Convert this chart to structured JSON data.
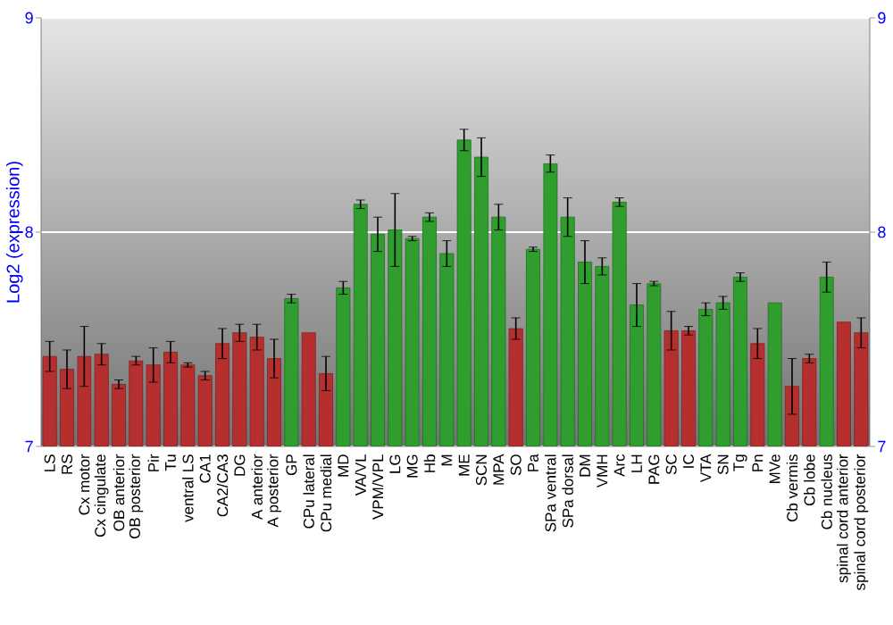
{
  "chart_data": {
    "type": "bar",
    "ylabel": "Log2 (expression)",
    "categories": [
      "LS",
      "RS",
      "Cx motor",
      "Cx cingulate",
      "OB anterior",
      "OB posterior",
      "Pir",
      "Tu",
      "ventral LS",
      "CA1",
      "CA2/CA3",
      "DG",
      "A anterior",
      "A posterior",
      "GP",
      "CPu lateral",
      "CPu medial",
      "MD",
      "VA/VL",
      "VPM/VPL",
      "LG",
      "MG",
      "Hb",
      "M",
      "ME",
      "SCN",
      "MPA",
      "SO",
      "Pa",
      "SPa ventral",
      "SPa dorsal",
      "DM",
      "VMH",
      "Arc",
      "LH",
      "PAG",
      "SC",
      "IC",
      "VTA",
      "SN",
      "Tg",
      "Pn",
      "MVe",
      "Cb vermis",
      "Cb lobe",
      "Cb nucleus",
      "spinal cord anterior",
      "spinal cord posterior"
    ],
    "values": [
      7.42,
      7.36,
      7.42,
      7.43,
      7.29,
      7.4,
      7.38,
      7.44,
      7.38,
      7.33,
      7.48,
      7.53,
      7.51,
      7.41,
      7.69,
      7.53,
      7.34,
      7.74,
      8.13,
      7.99,
      8.01,
      7.97,
      8.07,
      7.9,
      8.43,
      8.35,
      8.07,
      7.55,
      7.92,
      8.32,
      8.07,
      7.86,
      7.84,
      8.14,
      7.66,
      7.76,
      7.54,
      7.54,
      7.64,
      7.67,
      7.79,
      7.48,
      7.67,
      7.28,
      7.41,
      7.79,
      7.58,
      7.53
    ],
    "errors": [
      0.07,
      0.09,
      0.14,
      0.05,
      0.02,
      0.02,
      0.08,
      0.05,
      0.01,
      0.02,
      0.07,
      0.04,
      0.06,
      0.09,
      0.02,
      null,
      0.08,
      0.03,
      0.02,
      0.08,
      0.17,
      0.01,
      0.02,
      0.06,
      0.05,
      0.09,
      0.06,
      0.05,
      0.01,
      0.04,
      0.09,
      0.1,
      0.04,
      0.02,
      0.1,
      0.01,
      0.09,
      0.02,
      0.03,
      0.03,
      0.02,
      0.07,
      null,
      0.13,
      0.02,
      0.07,
      null,
      0.07
    ],
    "colors": [
      "#b52f2f",
      "#b52f2f",
      "#b52f2f",
      "#b52f2f",
      "#b52f2f",
      "#b52f2f",
      "#b52f2f",
      "#b52f2f",
      "#b52f2f",
      "#b52f2f",
      "#b52f2f",
      "#b52f2f",
      "#b52f2f",
      "#b52f2f",
      "#2f9e2f",
      "#b52f2f",
      "#b52f2f",
      "#2f9e2f",
      "#2f9e2f",
      "#2f9e2f",
      "#2f9e2f",
      "#2f9e2f",
      "#2f9e2f",
      "#2f9e2f",
      "#2f9e2f",
      "#2f9e2f",
      "#2f9e2f",
      "#b52f2f",
      "#2f9e2f",
      "#2f9e2f",
      "#2f9e2f",
      "#2f9e2f",
      "#2f9e2f",
      "#2f9e2f",
      "#2f9e2f",
      "#2f9e2f",
      "#b52f2f",
      "#b52f2f",
      "#2f9e2f",
      "#2f9e2f",
      "#2f9e2f",
      "#b52f2f",
      "#2f9e2f",
      "#b52f2f",
      "#b52f2f",
      "#2f9e2f",
      "#b52f2f",
      "#b52f2f"
    ],
    "ylim": [
      7,
      9
    ],
    "yticks": [
      7,
      8,
      9
    ],
    "y2lim": [
      7,
      9
    ],
    "y2ticks": [
      7,
      8,
      9
    ],
    "grid": "y"
  }
}
